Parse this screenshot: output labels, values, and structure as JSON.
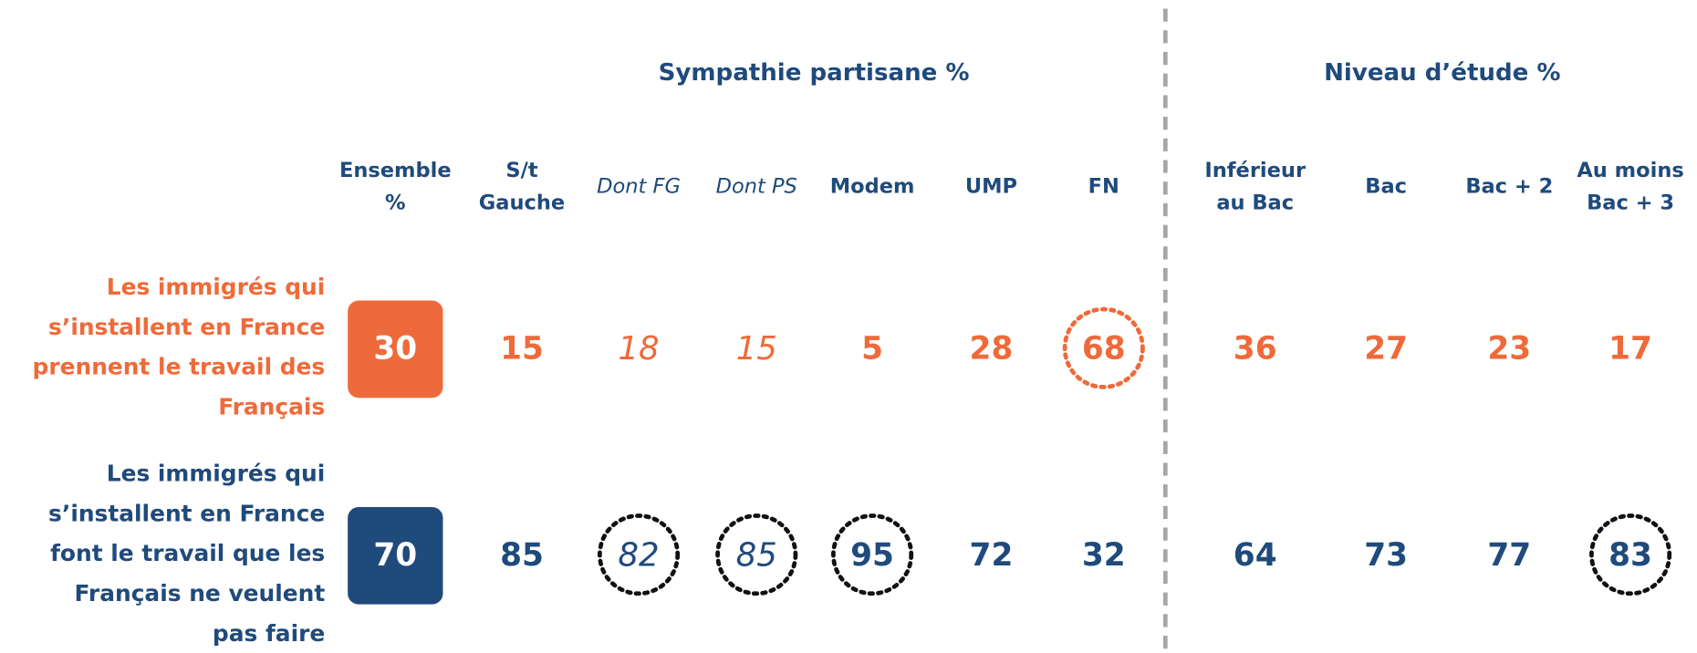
{
  "groups": [
    {
      "title": "Sympathie partisane %"
    },
    {
      "title": "Niveau d’étude %"
    }
  ],
  "columns": [
    {
      "label": [
        "Ensemble",
        "%"
      ]
    },
    {
      "label": [
        "S/t",
        "Gauche"
      ]
    },
    {
      "label": [
        "Dont FG"
      ]
    },
    {
      "label": [
        "Dont PS"
      ]
    },
    {
      "label": [
        "Modem"
      ]
    },
    {
      "label": [
        "UMP"
      ]
    },
    {
      "label": [
        "FN"
      ]
    },
    {
      "label": [
        "Inférieur",
        "au Bac"
      ]
    },
    {
      "label": [
        "Bac"
      ]
    },
    {
      "label": [
        "Bac + 2"
      ]
    },
    {
      "label": [
        "Au moins",
        "Bac + 3"
      ]
    }
  ],
  "rows": [
    {
      "label": [
        "Les immigrés qui",
        "s’installent en France",
        "prennent le travail des",
        "Français"
      ],
      "values": [
        30,
        15,
        18,
        15,
        5,
        28,
        68,
        36,
        27,
        23,
        17
      ]
    },
    {
      "label": [
        "Les immigrés qui",
        "s’installent en France",
        "font le travail que les",
        "Français ne veulent",
        "pas faire"
      ],
      "values": [
        70,
        85,
        82,
        85,
        95,
        72,
        32,
        64,
        73,
        77,
        83
      ]
    }
  ]
}
